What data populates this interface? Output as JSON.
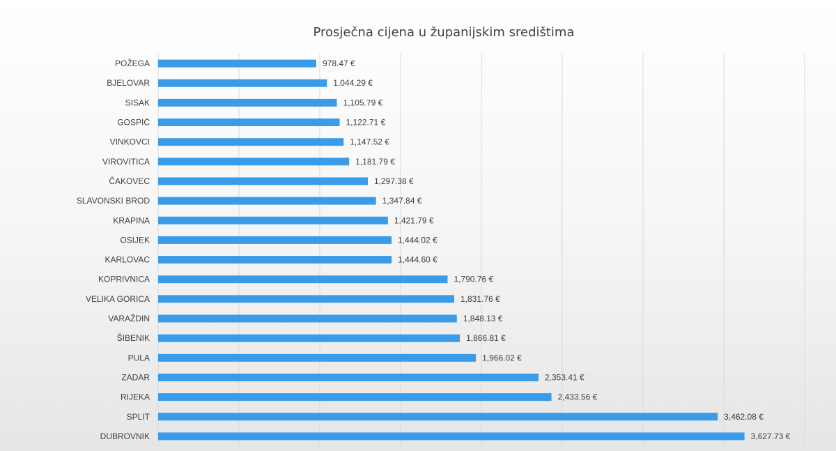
{
  "chart_data": {
    "type": "bar",
    "orientation": "horizontal",
    "title": "Prosječna cijena u županijskim središtima",
    "xlabel": "",
    "ylabel": "",
    "xlim": [
      0,
      4000
    ],
    "grid": true,
    "legend": "none",
    "bar_color": "#3a9be8",
    "categories": [
      "POŽEGA",
      "BJELOVAR",
      "SISAK",
      "GOSPIĆ",
      "VINKOVCI",
      "VIROVITICA",
      "ČAKOVEC",
      "SLAVONSKI BROD",
      "KRAPINA",
      "OSIJEK",
      "KARLOVAC",
      "KOPRIVNICA",
      "VELIKA GORICA",
      "VARAŽDIN",
      "ŠIBENIK",
      "PULA",
      "ZADAR",
      "RIJEKA",
      "SPLIT",
      "DUBROVNIK"
    ],
    "values": [
      978.47,
      1044.29,
      1105.79,
      1122.71,
      1147.52,
      1181.79,
      1297.38,
      1347.84,
      1421.79,
      1444.02,
      1444.6,
      1790.76,
      1831.76,
      1848.13,
      1866.81,
      1966.02,
      2353.41,
      2433.56,
      3462.08,
      3627.73
    ],
    "value_labels": [
      "978.47 €",
      "1,044.29 €",
      "1,105.79 €",
      "1,122.71 €",
      "1,147.52 €",
      "1,181.79 €",
      "1,297.38 €",
      "1,347.84 €",
      "1,421.79 €",
      "1,444.02 €",
      "1,444.60 €",
      "1,790.76 €",
      "1,831.76 €",
      "1,848.13 €",
      "1,866.81 €",
      "1,966.02 €",
      "2,353.41 €",
      "2,433.56 €",
      "3,462.08 €",
      "3,627.73 €"
    ]
  }
}
